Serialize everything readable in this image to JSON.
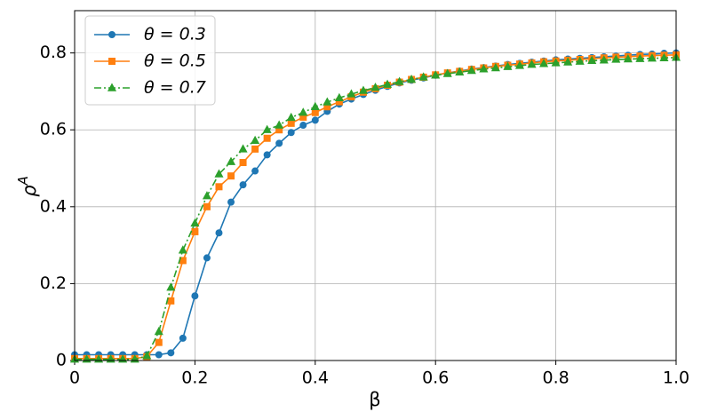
{
  "chart_data": {
    "type": "line",
    "xlabel": "β",
    "ylabel": {
      "base": "ρ",
      "superscript": "A"
    },
    "x": [
      0,
      0.02,
      0.04,
      0.06,
      0.08,
      0.1,
      0.12,
      0.14,
      0.16,
      0.18,
      0.2,
      0.22,
      0.24,
      0.26,
      0.28,
      0.3,
      0.32,
      0.34,
      0.36,
      0.38,
      0.4,
      0.42,
      0.44,
      0.46,
      0.48,
      0.5,
      0.52,
      0.54,
      0.56,
      0.58,
      0.6,
      0.62,
      0.64,
      0.66,
      0.68,
      0.7,
      0.72,
      0.74,
      0.76,
      0.78,
      0.8,
      0.82,
      0.84,
      0.86,
      0.88,
      0.9,
      0.92,
      0.94,
      0.96,
      0.98,
      1.0
    ],
    "series": [
      {
        "name": "θ = 0.3",
        "color": "#1f77b4",
        "marker": "circle",
        "linestyle": "solid",
        "values": [
          0.015,
          0.015,
          0.015,
          0.015,
          0.015,
          0.015,
          0.015,
          0.015,
          0.02,
          0.058,
          0.168,
          0.267,
          0.332,
          0.412,
          0.457,
          0.493,
          0.535,
          0.565,
          0.593,
          0.612,
          0.625,
          0.648,
          0.667,
          0.68,
          0.692,
          0.703,
          0.713,
          0.722,
          0.729,
          0.735,
          0.742,
          0.748,
          0.753,
          0.758,
          0.762,
          0.766,
          0.77,
          0.773,
          0.776,
          0.779,
          0.782,
          0.784,
          0.786,
          0.788,
          0.79,
          0.792,
          0.794,
          0.796,
          0.797,
          0.799,
          0.8
        ]
      },
      {
        "name": "θ = 0.5",
        "color": "#ff7f0e",
        "marker": "square",
        "linestyle": "solid",
        "values": [
          0.005,
          0.005,
          0.005,
          0.005,
          0.005,
          0.005,
          0.01,
          0.047,
          0.155,
          0.26,
          0.335,
          0.4,
          0.452,
          0.48,
          0.515,
          0.55,
          0.578,
          0.6,
          0.617,
          0.633,
          0.645,
          0.66,
          0.673,
          0.686,
          0.698,
          0.707,
          0.716,
          0.724,
          0.731,
          0.737,
          0.743,
          0.748,
          0.752,
          0.757,
          0.761,
          0.765,
          0.768,
          0.771,
          0.774,
          0.777,
          0.779,
          0.781,
          0.783,
          0.785,
          0.787,
          0.789,
          0.79,
          0.792,
          0.793,
          0.794,
          0.795
        ]
      },
      {
        "name": "θ = 0.7",
        "color": "#2ca02c",
        "marker": "triangle",
        "linestyle": "dashdot",
        "values": [
          0.003,
          0.003,
          0.003,
          0.003,
          0.003,
          0.003,
          0.012,
          0.075,
          0.19,
          0.287,
          0.357,
          0.428,
          0.485,
          0.517,
          0.55,
          0.572,
          0.6,
          0.612,
          0.632,
          0.645,
          0.66,
          0.672,
          0.683,
          0.693,
          0.702,
          0.71,
          0.718,
          0.725,
          0.731,
          0.737,
          0.742,
          0.746,
          0.75,
          0.754,
          0.758,
          0.761,
          0.764,
          0.767,
          0.77,
          0.772,
          0.774,
          0.776,
          0.778,
          0.78,
          0.781,
          0.783,
          0.784,
          0.785,
          0.786,
          0.787,
          0.788
        ]
      }
    ],
    "xlim": [
      0,
      1
    ],
    "ylim": [
      0,
      0.91
    ],
    "xticks": [
      0,
      0.2,
      0.4,
      0.6,
      0.8,
      {
        "value": 1,
        "label": "1.0"
      }
    ],
    "yticks": [
      0,
      0.2,
      0.4,
      0.6,
      0.8
    ],
    "grid": true,
    "legend": "upper left"
  }
}
